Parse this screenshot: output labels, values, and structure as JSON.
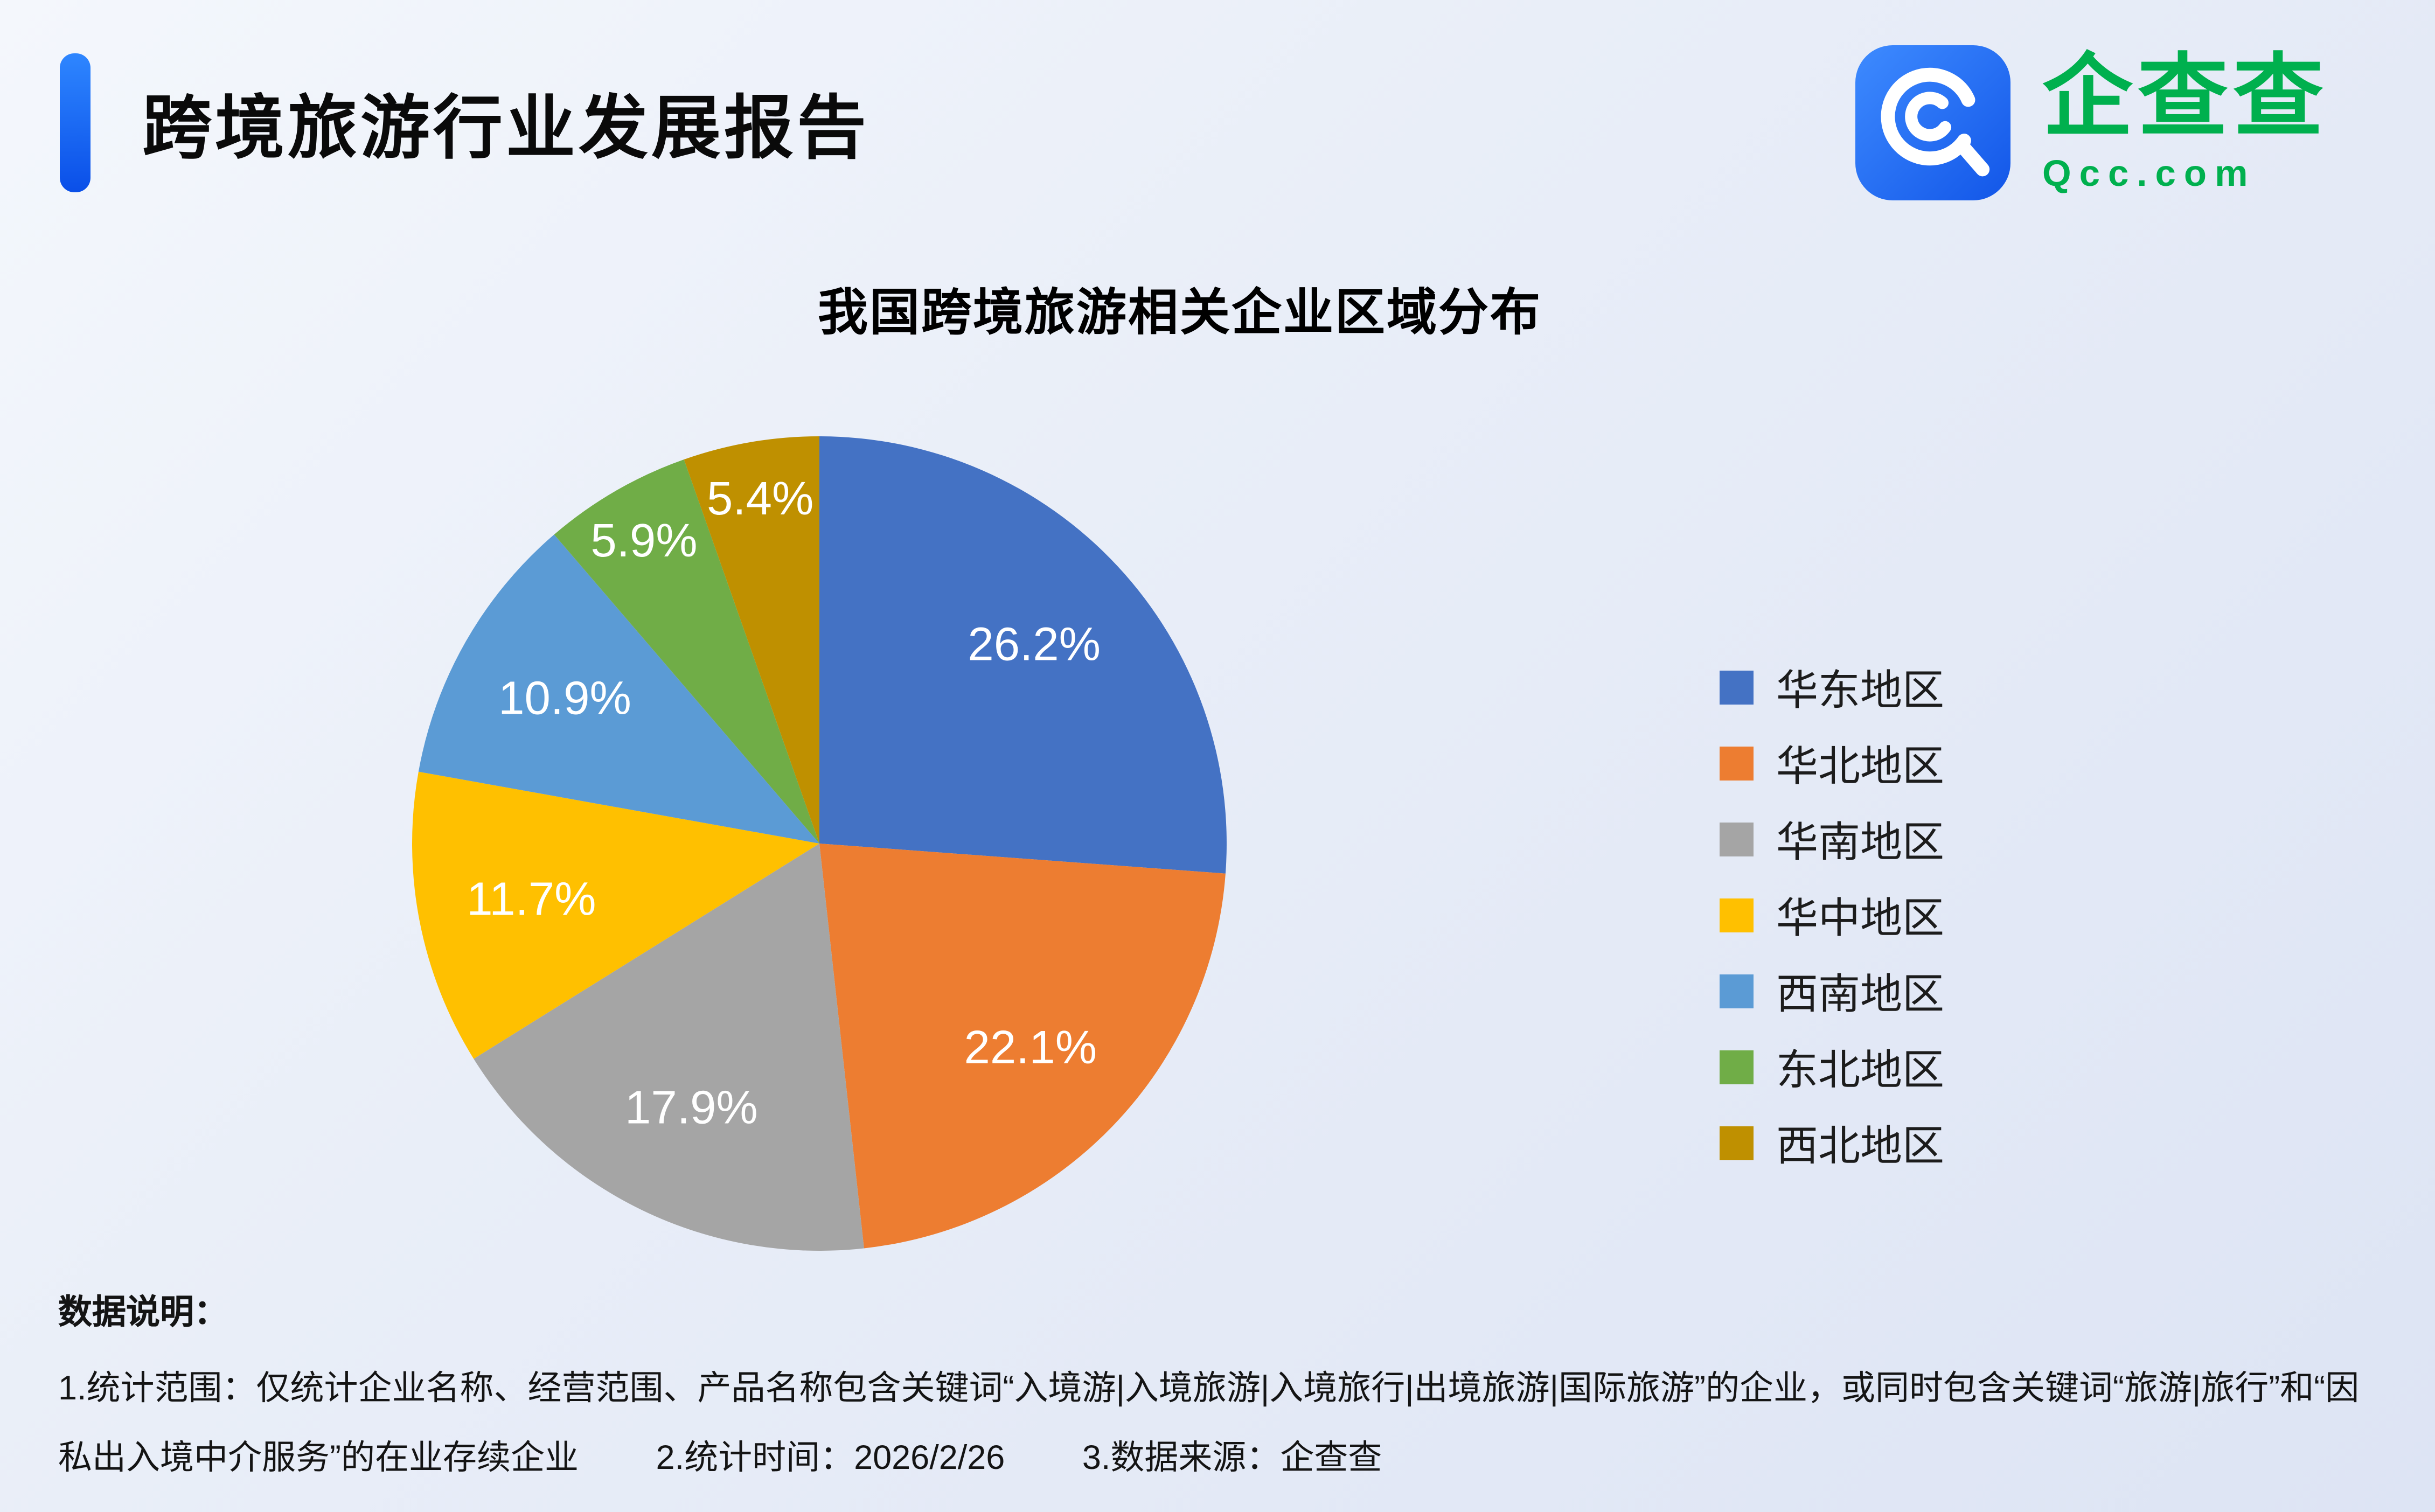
{
  "page": {
    "title": "跨境旅游行业发展报告"
  },
  "logo": {
    "name": "企查查",
    "domain": "Qcc.com",
    "brand_green": "#00b04e",
    "brand_blue": "#1f66ff"
  },
  "chart_data": {
    "type": "pie",
    "title": "我国跨境旅游相关企业区域分布",
    "categories": [
      "华东地区",
      "华北地区",
      "华南地区",
      "华中地区",
      "西南地区",
      "东北地区",
      "西北地区"
    ],
    "values": [
      26.2,
      22.1,
      17.9,
      11.7,
      10.9,
      5.9,
      5.4
    ],
    "unit": "%",
    "colors": [
      "#4472C4",
      "#ED7D31",
      "#A5A5A5",
      "#FFC000",
      "#5B9BD5",
      "#70AD47",
      "#BF9000"
    ],
    "legend_position": "right",
    "start_angle_deg": 0,
    "direction": "clockwise",
    "label_color": "#ffffff"
  },
  "notes": {
    "heading": "数据说明：",
    "note1": "1.统计范围：仅统计企业名称、经营范围、产品名称包含关键词“入境游|入境旅游|入境旅行|出境旅游|国际旅游”的企业，或同时包含关键词“旅游|旅行”和“因私出入境中介服务”的在业存续企业",
    "note2": "2.统计时间：2026/2/26",
    "note3": "3.数据来源：企查查"
  }
}
